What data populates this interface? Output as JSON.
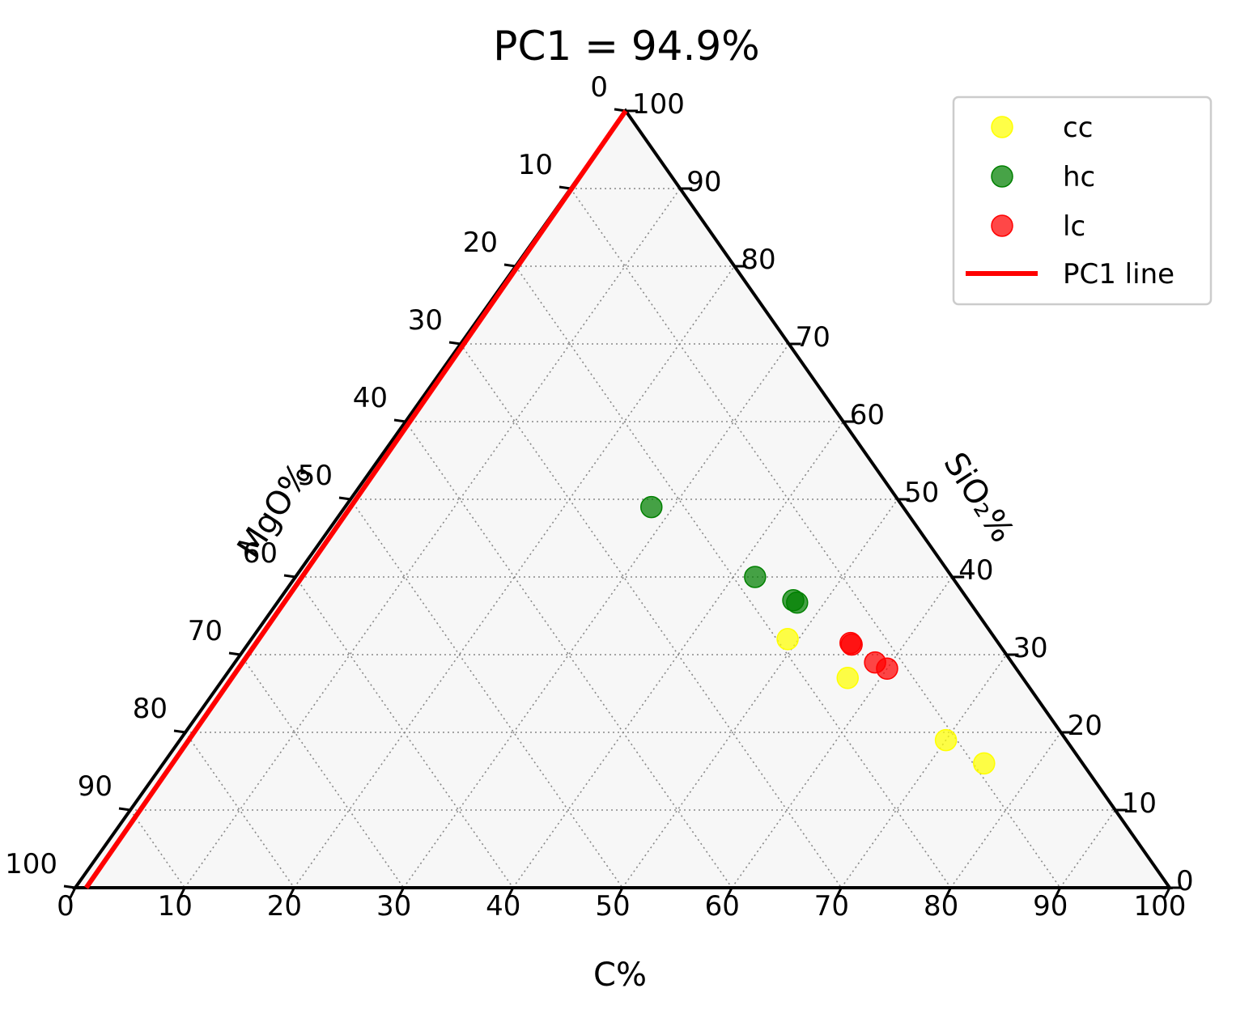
{
  "chart_data": {
    "type": "ternary-scatter",
    "title": "PC1 = 94.9%",
    "axes": {
      "bottom": {
        "label": "C%",
        "ticks": [
          "0",
          "10",
          "20",
          "30",
          "40",
          "50",
          "60",
          "70",
          "80",
          "90",
          "100"
        ]
      },
      "left": {
        "label": "MgO%",
        "ticks": [
          "0",
          "10",
          "20",
          "30",
          "40",
          "50",
          "60",
          "70",
          "80",
          "90",
          "100"
        ]
      },
      "right": {
        "label": "SiO₂%",
        "ticks": [
          "0",
          "10",
          "20",
          "30",
          "40",
          "50",
          "60",
          "70",
          "80",
          "90",
          "100"
        ]
      }
    },
    "range": [
      0,
      100
    ],
    "grid": true,
    "legend_position": "top-right",
    "series": [
      {
        "name": "cc",
        "color": "#ffff00",
        "points": [
          {
            "C": 49,
            "SiO2": 32
          },
          {
            "C": 57,
            "SiO2": 27
          },
          {
            "C": 70,
            "SiO2": 19
          },
          {
            "C": 75,
            "SiO2": 16
          }
        ]
      },
      {
        "name": "hc",
        "color": "#008000",
        "points": [
          {
            "C": 28,
            "SiO2": 49
          },
          {
            "C": 42,
            "SiO2": 40
          },
          {
            "C": 47,
            "SiO2": 37
          },
          {
            "C": 47.5,
            "SiO2": 36.7
          }
        ]
      },
      {
        "name": "lc",
        "color": "#ff0000",
        "points": [
          {
            "C": 55,
            "SiO2": 31.5
          },
          {
            "C": 55.2,
            "SiO2": 31.3
          },
          {
            "C": 58.5,
            "SiO2": 29
          },
          {
            "C": 60,
            "SiO2": 28.2
          }
        ]
      }
    ],
    "lines": [
      {
        "name": "PC1 line",
        "color": "#ff0000",
        "points": [
          {
            "C": 1,
            "SiO2": 0
          },
          {
            "C": 0,
            "SiO2": 100
          }
        ]
      }
    ]
  }
}
